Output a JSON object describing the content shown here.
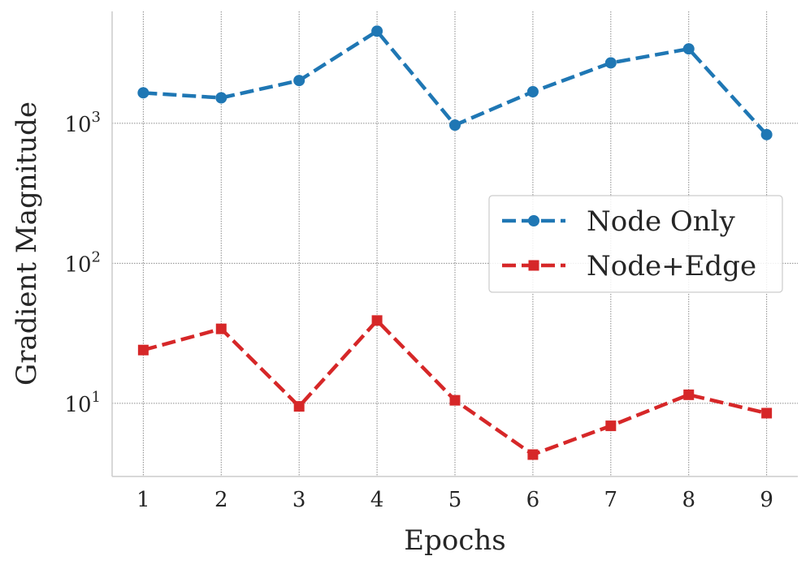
{
  "chart_data": {
    "type": "line",
    "title": "",
    "xlabel": "Epochs",
    "ylabel": "Gradient Magnitude",
    "x": [
      1,
      2,
      3,
      4,
      5,
      6,
      7,
      8,
      9
    ],
    "x_tick_labels": [
      "1",
      "2",
      "3",
      "4",
      "5",
      "6",
      "7",
      "8",
      "9"
    ],
    "y_scale": "log",
    "ylim": [
      3.0,
      6300
    ],
    "y_ticks": [
      10,
      100,
      1000
    ],
    "y_tick_labels": [
      {
        "base": "10",
        "exp": "1"
      },
      {
        "base": "10",
        "exp": "2"
      },
      {
        "base": "10",
        "exp": "3"
      }
    ],
    "grid": true,
    "legend_position": "center-right",
    "series": [
      {
        "name": "Node Only",
        "color": "#1f77b4",
        "marker": "circle",
        "line_style": "dashed",
        "values": [
          1650,
          1520,
          2020,
          4550,
          970,
          1680,
          2700,
          3400,
          830
        ]
      },
      {
        "name": "Node+Edge",
        "color": "#d62728",
        "marker": "square",
        "line_style": "dashed",
        "values": [
          24,
          34,
          9.5,
          39,
          10.5,
          4.3,
          6.9,
          11.5,
          8.5
        ]
      }
    ]
  }
}
